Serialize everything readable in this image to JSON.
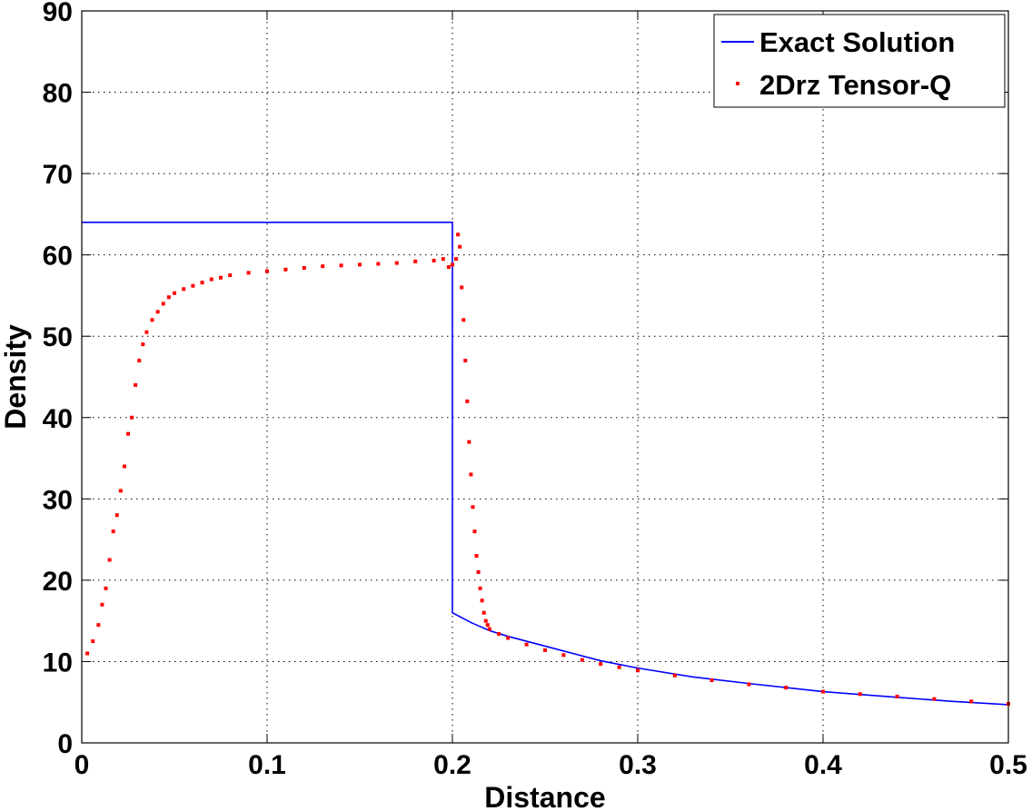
{
  "chart_data": {
    "type": "scatter",
    "title": "",
    "xlabel": "Distance",
    "ylabel": "Density",
    "xlim": [
      0,
      0.5
    ],
    "ylim": [
      0,
      90
    ],
    "xticks": [
      0,
      0.1,
      0.2,
      0.3,
      0.4,
      0.5
    ],
    "xtick_labels": [
      "0",
      "0.1",
      "0.2",
      "0.3",
      "0.4",
      "0.5"
    ],
    "yticks": [
      0,
      10,
      20,
      30,
      40,
      50,
      60,
      70,
      80,
      90
    ],
    "ytick_labels": [
      "0",
      "10",
      "20",
      "30",
      "40",
      "50",
      "60",
      "70",
      "80",
      "90"
    ],
    "grid": true,
    "legend_position": "top-right",
    "series": [
      {
        "name": "Exact Solution",
        "kind": "line",
        "color": "#0000ff",
        "x": [
          0,
          0.2,
          0.2,
          0.205,
          0.21,
          0.215,
          0.22,
          0.23,
          0.25,
          0.28,
          0.3,
          0.33,
          0.36,
          0.4,
          0.44,
          0.47,
          0.5
        ],
        "y": [
          64,
          64,
          16,
          15.4,
          14.8,
          14.3,
          13.8,
          13.1,
          11.9,
          10.1,
          9.2,
          8.1,
          7.3,
          6.3,
          5.6,
          5.1,
          4.7
        ]
      },
      {
        "name": "2Drz Tensor-Q",
        "kind": "scatter",
        "color": "#ff0000",
        "marker": "dot",
        "x": [
          0.003,
          0.006,
          0.009,
          0.011,
          0.013,
          0.015,
          0.017,
          0.019,
          0.021,
          0.023,
          0.025,
          0.027,
          0.029,
          0.031,
          0.033,
          0.035,
          0.038,
          0.041,
          0.044,
          0.047,
          0.05,
          0.055,
          0.06,
          0.065,
          0.07,
          0.075,
          0.08,
          0.09,
          0.1,
          0.11,
          0.12,
          0.13,
          0.14,
          0.15,
          0.16,
          0.17,
          0.18,
          0.19,
          0.195,
          0.198,
          0.2,
          0.202,
          0.203,
          0.204,
          0.205,
          0.206,
          0.207,
          0.208,
          0.209,
          0.21,
          0.211,
          0.212,
          0.213,
          0.214,
          0.215,
          0.216,
          0.217,
          0.218,
          0.219,
          0.22,
          0.225,
          0.23,
          0.24,
          0.25,
          0.26,
          0.27,
          0.28,
          0.29,
          0.3,
          0.32,
          0.34,
          0.36,
          0.38,
          0.4,
          0.42,
          0.44,
          0.46,
          0.48,
          0.5
        ],
        "y": [
          11,
          12.5,
          14.5,
          17,
          19,
          22.5,
          26,
          28,
          31,
          34,
          38,
          40,
          44,
          47,
          49,
          50.5,
          52,
          53,
          54,
          54.8,
          55.3,
          55.8,
          56.2,
          56.6,
          57,
          57.2,
          57.5,
          57.8,
          58,
          58.2,
          58.4,
          58.6,
          58.7,
          58.8,
          58.9,
          59,
          59.2,
          59.3,
          59.5,
          58.5,
          58.8,
          59.5,
          62.5,
          61,
          56,
          52,
          47,
          42,
          37,
          33,
          29,
          26,
          23,
          21,
          19,
          17.5,
          16,
          15,
          14.5,
          14,
          13.4,
          12.9,
          12.1,
          11.4,
          10.8,
          10.2,
          9.7,
          9.3,
          8.9,
          8.3,
          7.7,
          7.2,
          6.8,
          6.3,
          6,
          5.7,
          5.4,
          5.1,
          4.8
        ]
      }
    ]
  }
}
